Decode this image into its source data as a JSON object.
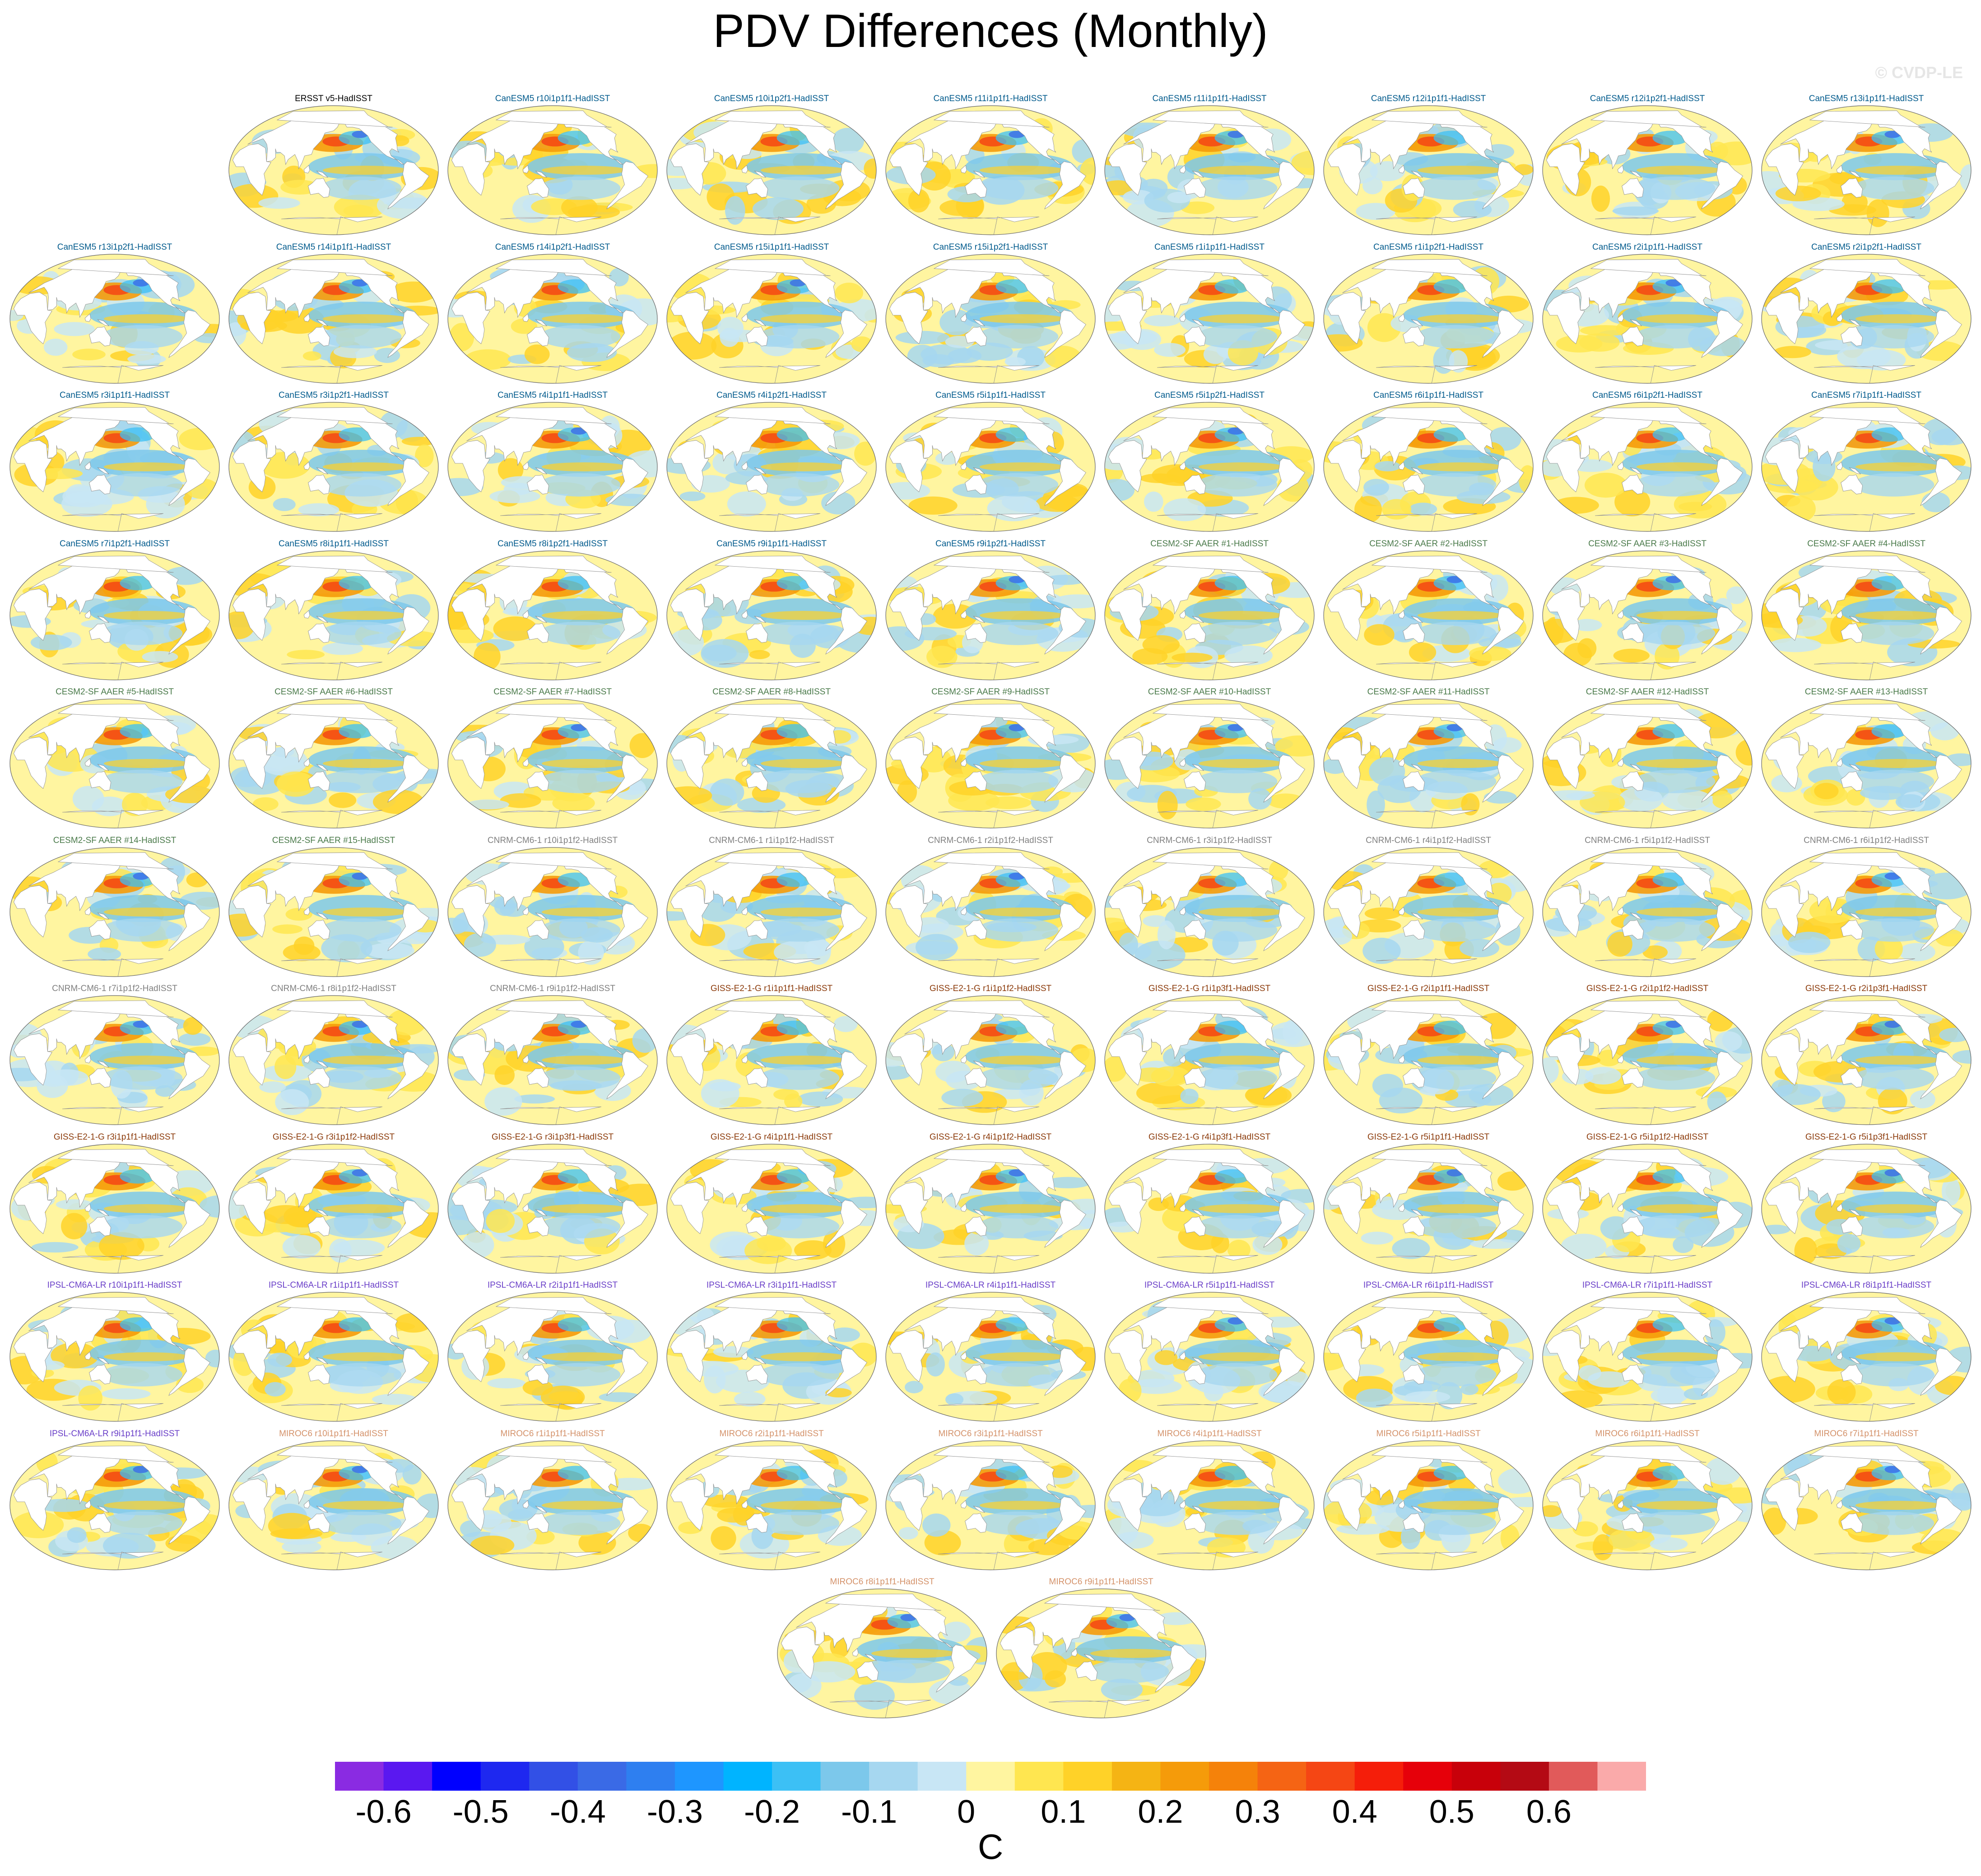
{
  "title": "PDV Differences (Monthly)",
  "watermark": "© CVDP-LE",
  "units": "C",
  "chart_data": {
    "type": "heatmap",
    "map_projection": "Robinson (global, Pacific-centered)",
    "colorbar": {
      "tick_labels": [
        "-0.6",
        "-0.5",
        "-0.4",
        "-0.3",
        "-0.2",
        "-0.1",
        "0",
        "0.1",
        "0.2",
        "0.3",
        "0.4",
        "0.5",
        "0.6"
      ],
      "tick_values": [
        -0.6,
        -0.5,
        -0.4,
        -0.3,
        -0.2,
        -0.1,
        0,
        0.1,
        0.2,
        0.3,
        0.4,
        0.5,
        0.6
      ],
      "colors": [
        "#8a2be2",
        "#5a18f0",
        "#0000ff",
        "#1e28f0",
        "#3250e6",
        "#3a6ae6",
        "#2e7ff0",
        "#1e96ff",
        "#00b4ff",
        "#3cc0f5",
        "#7cc8eb",
        "#a6d7f0",
        "#c8e6f5",
        "#fff5a0",
        "#ffe650",
        "#ffd228",
        "#f5b414",
        "#f59b0a",
        "#f5820a",
        "#f56414",
        "#f54614",
        "#f51e0a",
        "#e6000a",
        "#c8000a",
        "#b40a14",
        "#e15a5a",
        "#faaaaa"
      ]
    },
    "model_colors": {
      "ERSST": "#000000",
      "CanESM5": "#005a8c",
      "CESM2-SF": "#4a7a4a",
      "CNRM-CM6-1": "#808080",
      "GISS-E2-1-G": "#8b3a0a",
      "IPSL-CM6A-LR": "#6a3fc8",
      "MIROC6": "#d4926a"
    },
    "panels": [
      {
        "label": "ERSST v5-HadISST",
        "model": "ERSST"
      },
      {
        "label": "CanESM5 r10i1p1f1-HadISST",
        "model": "CanESM5"
      },
      {
        "label": "CanESM5 r10i1p2f1-HadISST",
        "model": "CanESM5"
      },
      {
        "label": "CanESM5 r11i1p1f1-HadISST",
        "model": "CanESM5"
      },
      {
        "label": "CanESM5 r11i1p1f1-HadISST",
        "model": "CanESM5"
      },
      {
        "label": "CanESM5 r12i1p1f1-HadISST",
        "model": "CanESM5"
      },
      {
        "label": "CanESM5 r12i1p2f1-HadISST",
        "model": "CanESM5"
      },
      {
        "label": "CanESM5 r13i1p1f1-HadISST",
        "model": "CanESM5"
      },
      {
        "label": "CanESM5 r13i1p2f1-HadISST",
        "model": "CanESM5"
      },
      {
        "label": "CanESM5 r14i1p1f1-HadISST",
        "model": "CanESM5"
      },
      {
        "label": "CanESM5 r14i1p2f1-HadISST",
        "model": "CanESM5"
      },
      {
        "label": "CanESM5 r15i1p1f1-HadISST",
        "model": "CanESM5"
      },
      {
        "label": "CanESM5 r15i1p2f1-HadISST",
        "model": "CanESM5"
      },
      {
        "label": "CanESM5 r1i1p1f1-HadISST",
        "model": "CanESM5"
      },
      {
        "label": "CanESM5 r1i1p2f1-HadISST",
        "model": "CanESM5"
      },
      {
        "label": "CanESM5 r2i1p1f1-HadISST",
        "model": "CanESM5"
      },
      {
        "label": "CanESM5 r2i1p2f1-HadISST",
        "model": "CanESM5"
      },
      {
        "label": "CanESM5 r3i1p1f1-HadISST",
        "model": "CanESM5"
      },
      {
        "label": "CanESM5 r3i1p2f1-HadISST",
        "model": "CanESM5"
      },
      {
        "label": "CanESM5 r4i1p1f1-HadISST",
        "model": "CanESM5"
      },
      {
        "label": "CanESM5 r4i1p2f1-HadISST",
        "model": "CanESM5"
      },
      {
        "label": "CanESM5 r5i1p1f1-HadISST",
        "model": "CanESM5"
      },
      {
        "label": "CanESM5 r5i1p2f1-HadISST",
        "model": "CanESM5"
      },
      {
        "label": "CanESM5 r6i1p1f1-HadISST",
        "model": "CanESM5"
      },
      {
        "label": "CanESM5 r6i1p2f1-HadISST",
        "model": "CanESM5"
      },
      {
        "label": "CanESM5 r7i1p1f1-HadISST",
        "model": "CanESM5"
      },
      {
        "label": "CanESM5 r7i1p2f1-HadISST",
        "model": "CanESM5"
      },
      {
        "label": "CanESM5 r8i1p1f1-HadISST",
        "model": "CanESM5"
      },
      {
        "label": "CanESM5 r8i1p2f1-HadISST",
        "model": "CanESM5"
      },
      {
        "label": "CanESM5 r9i1p1f1-HadISST",
        "model": "CanESM5"
      },
      {
        "label": "CanESM5 r9i1p2f1-HadISST",
        "model": "CanESM5"
      },
      {
        "label": "CESM2-SF AAER #1-HadISST",
        "model": "CESM2-SF"
      },
      {
        "label": "CESM2-SF AAER #2-HadISST",
        "model": "CESM2-SF"
      },
      {
        "label": "CESM2-SF AAER #3-HadISST",
        "model": "CESM2-SF"
      },
      {
        "label": "CESM2-SF AAER #4-HadISST",
        "model": "CESM2-SF"
      },
      {
        "label": "CESM2-SF AAER #5-HadISST",
        "model": "CESM2-SF"
      },
      {
        "label": "CESM2-SF AAER #6-HadISST",
        "model": "CESM2-SF"
      },
      {
        "label": "CESM2-SF AAER #7-HadISST",
        "model": "CESM2-SF"
      },
      {
        "label": "CESM2-SF AAER #8-HadISST",
        "model": "CESM2-SF"
      },
      {
        "label": "CESM2-SF AAER #9-HadISST",
        "model": "CESM2-SF"
      },
      {
        "label": "CESM2-SF AAER #10-HadISST",
        "model": "CESM2-SF"
      },
      {
        "label": "CESM2-SF AAER #11-HadISST",
        "model": "CESM2-SF"
      },
      {
        "label": "CESM2-SF AAER #12-HadISST",
        "model": "CESM2-SF"
      },
      {
        "label": "CESM2-SF AAER #13-HadISST",
        "model": "CESM2-SF"
      },
      {
        "label": "CESM2-SF AAER #14-HadISST",
        "model": "CESM2-SF"
      },
      {
        "label": "CESM2-SF AAER #15-HadISST",
        "model": "CESM2-SF"
      },
      {
        "label": "CNRM-CM6-1 r10i1p1f2-HadISST",
        "model": "CNRM-CM6-1"
      },
      {
        "label": "CNRM-CM6-1 r1i1p1f2-HadISST",
        "model": "CNRM-CM6-1"
      },
      {
        "label": "CNRM-CM6-1 r2i1p1f2-HadISST",
        "model": "CNRM-CM6-1"
      },
      {
        "label": "CNRM-CM6-1 r3i1p1f2-HadISST",
        "model": "CNRM-CM6-1"
      },
      {
        "label": "CNRM-CM6-1 r4i1p1f2-HadISST",
        "model": "CNRM-CM6-1"
      },
      {
        "label": "CNRM-CM6-1 r5i1p1f2-HadISST",
        "model": "CNRM-CM6-1"
      },
      {
        "label": "CNRM-CM6-1 r6i1p1f2-HadISST",
        "model": "CNRM-CM6-1"
      },
      {
        "label": "CNRM-CM6-1 r7i1p1f2-HadISST",
        "model": "CNRM-CM6-1"
      },
      {
        "label": "CNRM-CM6-1 r8i1p1f2-HadISST",
        "model": "CNRM-CM6-1"
      },
      {
        "label": "CNRM-CM6-1 r9i1p1f2-HadISST",
        "model": "CNRM-CM6-1"
      },
      {
        "label": "GISS-E2-1-G r1i1p1f1-HadISST",
        "model": "GISS-E2-1-G"
      },
      {
        "label": "GISS-E2-1-G r1i1p1f2-HadISST",
        "model": "GISS-E2-1-G"
      },
      {
        "label": "GISS-E2-1-G r1i1p3f1-HadISST",
        "model": "GISS-E2-1-G"
      },
      {
        "label": "GISS-E2-1-G r2i1p1f1-HadISST",
        "model": "GISS-E2-1-G"
      },
      {
        "label": "GISS-E2-1-G r2i1p1f2-HadISST",
        "model": "GISS-E2-1-G"
      },
      {
        "label": "GISS-E2-1-G r2i1p3f1-HadISST",
        "model": "GISS-E2-1-G"
      },
      {
        "label": "GISS-E2-1-G r3i1p1f1-HadISST",
        "model": "GISS-E2-1-G"
      },
      {
        "label": "GISS-E2-1-G r3i1p1f2-HadISST",
        "model": "GISS-E2-1-G"
      },
      {
        "label": "GISS-E2-1-G r3i1p3f1-HadISST",
        "model": "GISS-E2-1-G"
      },
      {
        "label": "GISS-E2-1-G r4i1p1f1-HadISST",
        "model": "GISS-E2-1-G"
      },
      {
        "label": "GISS-E2-1-G r4i1p1f2-HadISST",
        "model": "GISS-E2-1-G"
      },
      {
        "label": "GISS-E2-1-G r4i1p3f1-HadISST",
        "model": "GISS-E2-1-G"
      },
      {
        "label": "GISS-E2-1-G r5i1p1f1-HadISST",
        "model": "GISS-E2-1-G"
      },
      {
        "label": "GISS-E2-1-G r5i1p1f2-HadISST",
        "model": "GISS-E2-1-G"
      },
      {
        "label": "GISS-E2-1-G r5i1p3f1-HadISST",
        "model": "GISS-E2-1-G"
      },
      {
        "label": "IPSL-CM6A-LR r10i1p1f1-HadISST",
        "model": "IPSL-CM6A-LR"
      },
      {
        "label": "IPSL-CM6A-LR r1i1p1f1-HadISST",
        "model": "IPSL-CM6A-LR"
      },
      {
        "label": "IPSL-CM6A-LR r2i1p1f1-HadISST",
        "model": "IPSL-CM6A-LR"
      },
      {
        "label": "IPSL-CM6A-LR r3i1p1f1-HadISST",
        "model": "IPSL-CM6A-LR"
      },
      {
        "label": "IPSL-CM6A-LR r4i1p1f1-HadISST",
        "model": "IPSL-CM6A-LR"
      },
      {
        "label": "IPSL-CM6A-LR r5i1p1f1-HadISST",
        "model": "IPSL-CM6A-LR"
      },
      {
        "label": "IPSL-CM6A-LR r6i1p1f1-HadISST",
        "model": "IPSL-CM6A-LR"
      },
      {
        "label": "IPSL-CM6A-LR r7i1p1f1-HadISST",
        "model": "IPSL-CM6A-LR"
      },
      {
        "label": "IPSL-CM6A-LR r8i1p1f1-HadISST",
        "model": "IPSL-CM6A-LR"
      },
      {
        "label": "IPSL-CM6A-LR r9i1p1f1-HadISST",
        "model": "IPSL-CM6A-LR"
      },
      {
        "label": "MIROC6 r10i1p1f1-HadISST",
        "model": "MIROC6"
      },
      {
        "label": "MIROC6 r1i1p1f1-HadISST",
        "model": "MIROC6"
      },
      {
        "label": "MIROC6 r2i1p1f1-HadISST",
        "model": "MIROC6"
      },
      {
        "label": "MIROC6 r3i1p1f1-HadISST",
        "model": "MIROC6"
      },
      {
        "label": "MIROC6 r4i1p1f1-HadISST",
        "model": "MIROC6"
      },
      {
        "label": "MIROC6 r5i1p1f1-HadISST",
        "model": "MIROC6"
      },
      {
        "label": "MIROC6 r6i1p1f1-HadISST",
        "model": "MIROC6"
      },
      {
        "label": "MIROC6 r7i1p1f1-HadISST",
        "model": "MIROC6"
      },
      {
        "label": "MIROC6 r8i1p1f1-HadISST",
        "model": "MIROC6"
      },
      {
        "label": "MIROC6 r9i1p1f1-HadISST",
        "model": "MIROC6"
      }
    ]
  }
}
